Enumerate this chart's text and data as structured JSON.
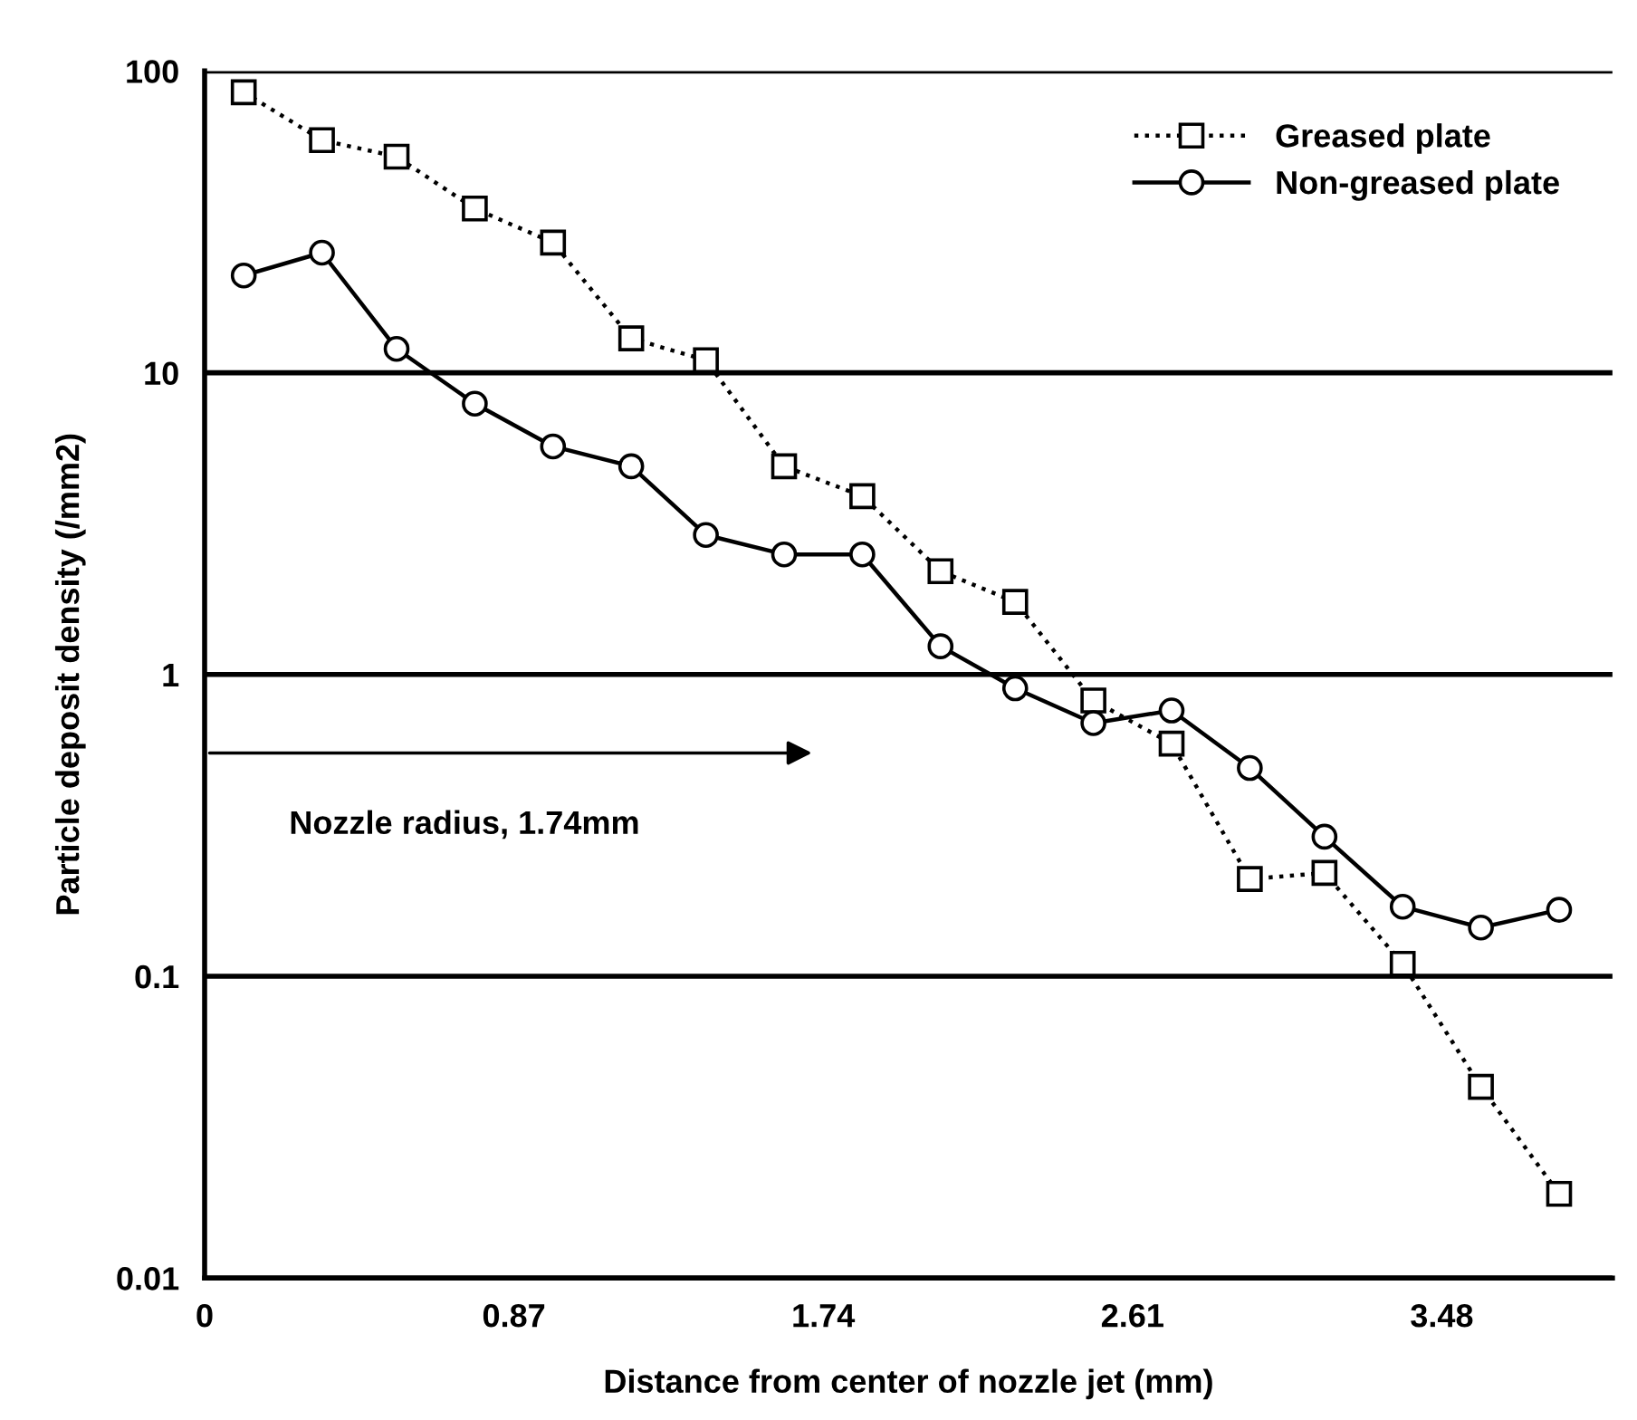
{
  "chart_data": {
    "type": "line",
    "xlabel": "Distance from center of nozzle jet (mm)",
    "ylabel": "Particle deposit density (/mm2)",
    "log": "y",
    "xlim": [
      0,
      3.96
    ],
    "xticks": [
      0,
      0.87,
      1.74,
      2.61,
      3.48
    ],
    "ylim": [
      0.01,
      100
    ],
    "yticks": [
      0.01,
      0.1,
      1,
      10,
      100
    ],
    "grid": "y",
    "legend": "top right",
    "x": [
      0.11,
      0.33,
      0.54,
      0.76,
      0.98,
      1.2,
      1.41,
      1.63,
      1.85,
      2.07,
      2.28,
      2.5,
      2.72,
      2.94,
      3.15,
      3.37,
      3.59,
      3.81
    ],
    "series": [
      {
        "name": "Greased plate",
        "color": "#000000",
        "marker": "square",
        "line_style": "dotted",
        "values": [
          85,
          59,
          52,
          35,
          27,
          13,
          11,
          4.9,
          3.9,
          2.2,
          1.74,
          0.82,
          0.59,
          0.21,
          0.22,
          0.11,
          0.043,
          0.019
        ]
      },
      {
        "name": "Non-greased plate",
        "color": "#000000",
        "marker": "circle",
        "line_style": "solid",
        "values": [
          21,
          25,
          12,
          7.9,
          5.7,
          4.9,
          2.9,
          2.5,
          2.5,
          1.24,
          0.9,
          0.69,
          0.76,
          0.49,
          0.29,
          0.17,
          0.145,
          0.166
        ]
      }
    ],
    "annotations": [
      "Nozzle radius, 1.74mm"
    ]
  }
}
